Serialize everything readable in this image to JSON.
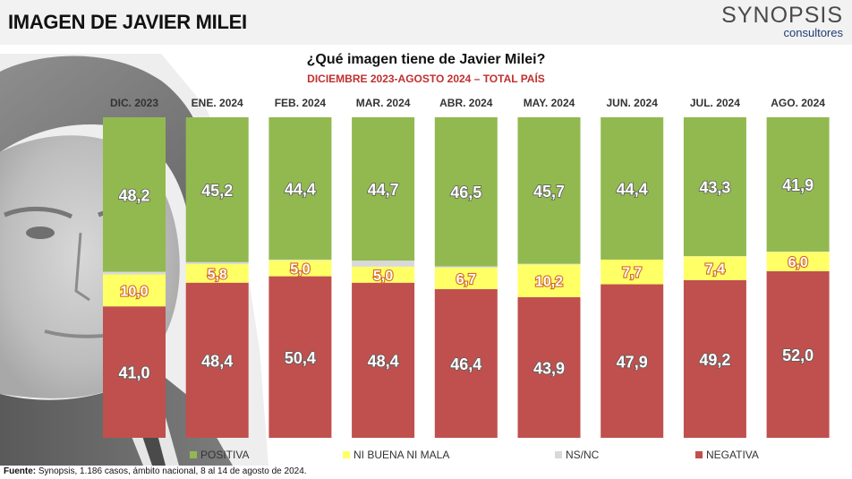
{
  "header": {
    "title": "IMAGEN DE JAVIER MILEI"
  },
  "logo": {
    "main": "SYNOPSIS",
    "sub": "consultores"
  },
  "source": {
    "label": "Fuente:",
    "text": " Synopsis, 1.186 casos, ámbito nacional, 8 al 14 de agosto de 2024."
  },
  "chart_data": {
    "type": "bar",
    "stacked": true,
    "title": "¿Qué imagen tiene de Javier Milei?",
    "subtitle": "DICIEMBRE 2023-AGOSTO 2024 – TOTAL PAÍS",
    "categories": [
      "DIC. 2023",
      "ENE. 2024",
      "FEB. 2024",
      "MAR. 2024",
      "ABR. 2024",
      "MAY. 2024",
      "JUN. 2024",
      "JUL. 2024",
      "AGO. 2024"
    ],
    "series": [
      {
        "name": "NEGATIVA",
        "color": "#c0504d",
        "values": [
          41.0,
          48.4,
          50.4,
          48.4,
          46.4,
          43.9,
          47.9,
          49.2,
          52.0
        ],
        "labels": [
          "41,0",
          "48,4",
          "50,4",
          "48,4",
          "46,4",
          "43,9",
          "47,9",
          "49,2",
          "52,0"
        ]
      },
      {
        "name": "NI BUENA NI MALA",
        "color": "#ffff66",
        "values": [
          10.0,
          5.8,
          5.0,
          5.0,
          6.7,
          10.2,
          7.7,
          7.4,
          6.0
        ],
        "labels": [
          "10,0",
          "5,8",
          "5,0",
          "5,0",
          "6,7",
          "10,2",
          "7,7",
          "7,4",
          "6,0"
        ]
      },
      {
        "name": "NS/NC",
        "color": "#d9d9d9",
        "values": [
          0.8,
          0.6,
          0.2,
          1.9,
          0.4,
          0.2,
          0.0,
          0.1,
          0.1
        ],
        "labels": [
          "",
          "",
          "",
          "",
          "",
          "",
          "",
          "",
          ""
        ]
      },
      {
        "name": "POSITIVA",
        "color": "#92b94f",
        "values": [
          48.2,
          45.2,
          44.4,
          44.7,
          46.5,
          45.7,
          44.4,
          43.3,
          41.9
        ],
        "labels": [
          "48,2",
          "45,2",
          "44,4",
          "44,7",
          "46,5",
          "45,7",
          "44,4",
          "43,3",
          "41,9"
        ]
      }
    ],
    "legend": [
      "POSITIVA",
      "NI BUENA NI MALA",
      "NS/NC",
      "NEGATIVA"
    ],
    "legend_colors": [
      "#92b94f",
      "#ffff66",
      "#d9d9d9",
      "#c0504d"
    ],
    "ylim": [
      0,
      100
    ],
    "legend_position": "bottom"
  }
}
